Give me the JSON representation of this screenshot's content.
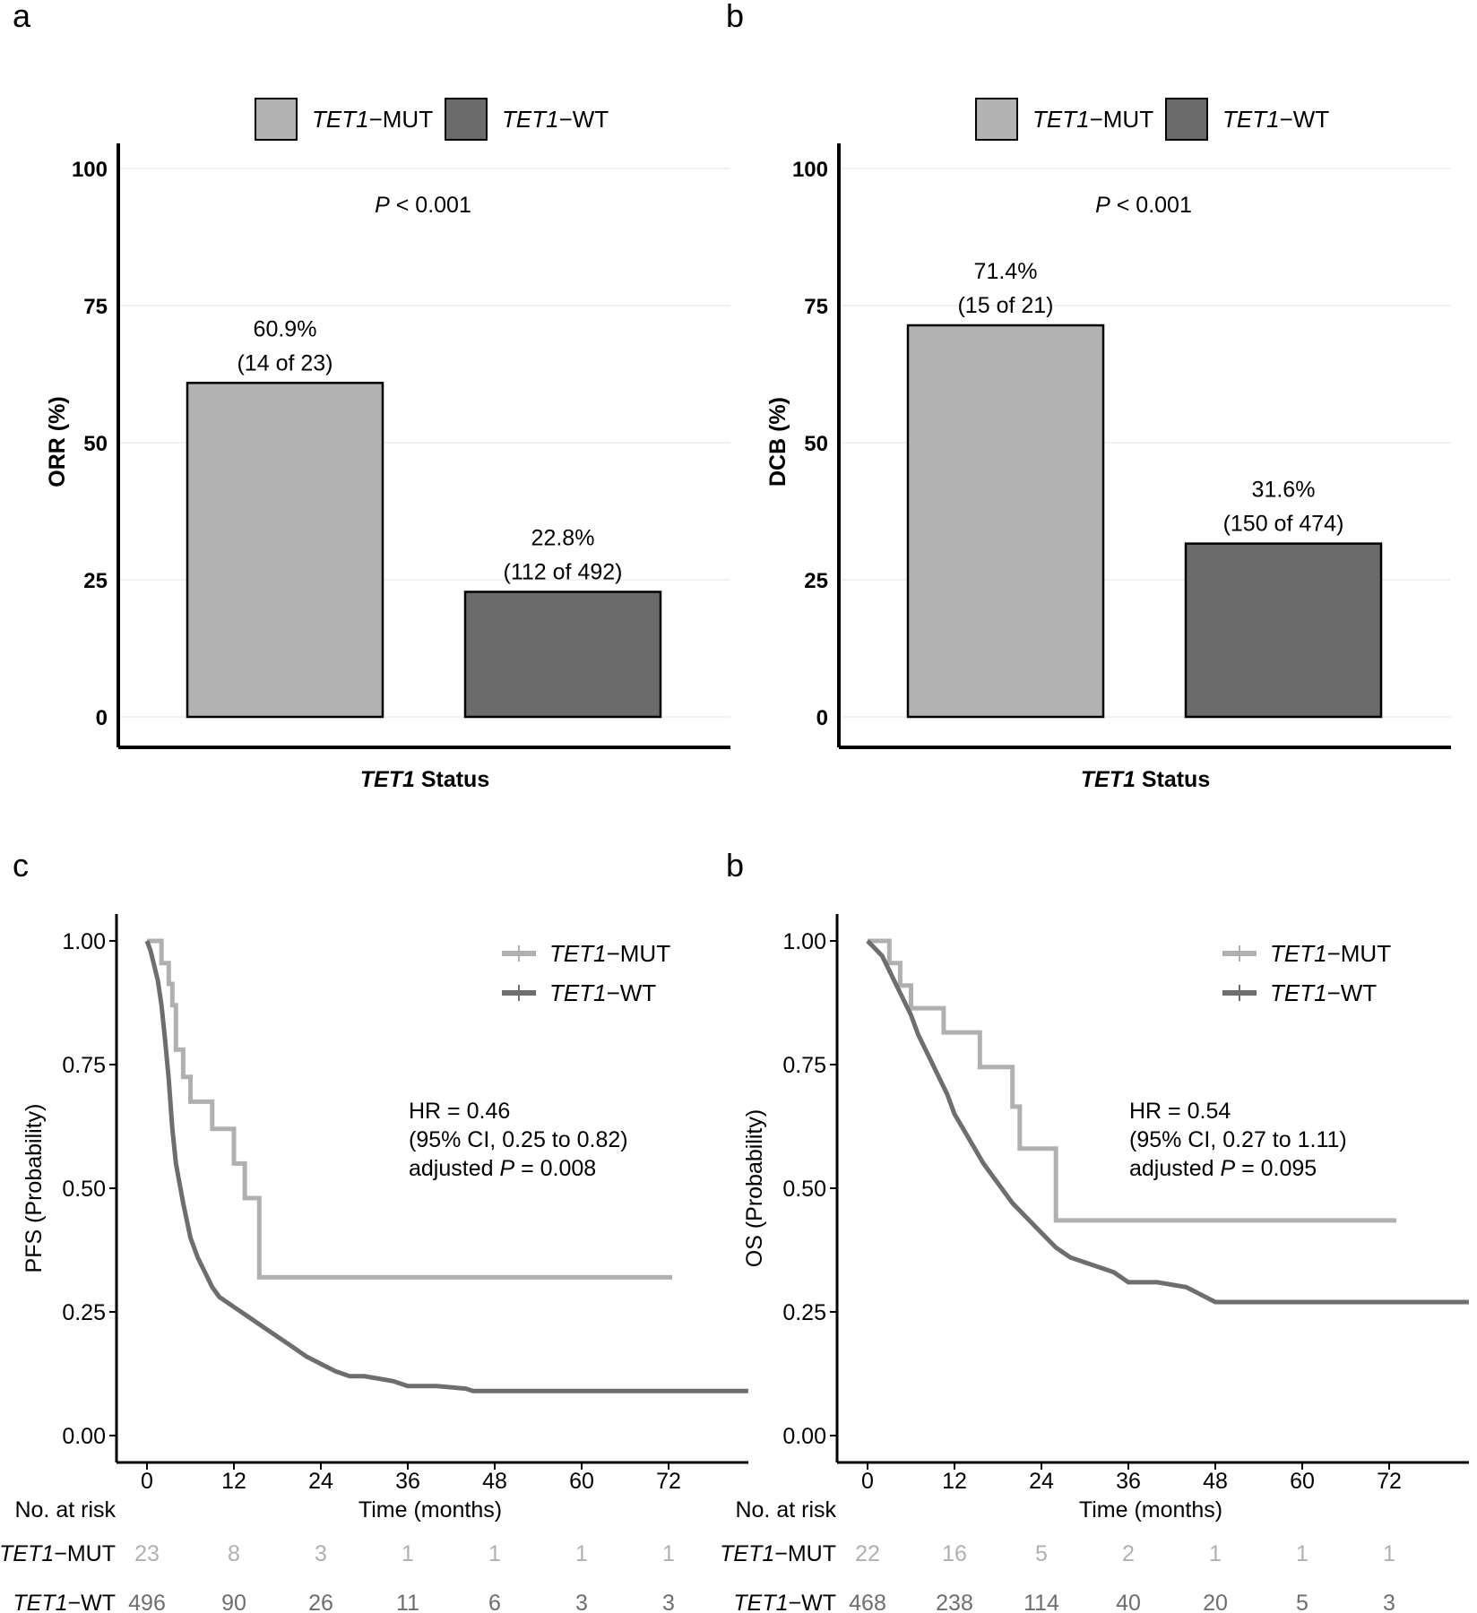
{
  "panels": {
    "a": "a",
    "b": "b",
    "c": "c",
    "d": "b"
  },
  "colors": {
    "mut": "#b3b3b3",
    "wt": "#6b6b6b",
    "mut_line": "#b0b0b0",
    "wt_line": "#6e6e6e",
    "axis": "#000000",
    "grid": "#eeeeee"
  },
  "legend": {
    "mut_italic": "TET1",
    "mut_suffix": "−MUT",
    "wt_italic": "TET1",
    "wt_suffix": "−WT"
  },
  "chart_data": [
    {
      "id": "a",
      "type": "bar",
      "title": "",
      "categories": [
        "TET1-MUT",
        "TET1-WT"
      ],
      "values": [
        60.9,
        22.8
      ],
      "bar_labels": [
        [
          "60.9%",
          "(14 of 23)"
        ],
        [
          "22.8%",
          "(112 of 492)"
        ]
      ],
      "xlabel_italic": "TET1",
      "xlabel_rest": " Status",
      "ylabel": "ORR (%)",
      "ylim": [
        0,
        100
      ],
      "yticks": [
        0,
        25,
        50,
        75,
        100
      ],
      "annotation_italic": "P",
      "annotation_rest": " < 0.001",
      "legend_position": "top",
      "grid": true
    },
    {
      "id": "b",
      "type": "bar",
      "title": "",
      "categories": [
        "TET1-MUT",
        "TET1-WT"
      ],
      "values": [
        71.4,
        31.6
      ],
      "bar_labels": [
        [
          "71.4%",
          "(15 of 21)"
        ],
        [
          "31.6%",
          "(150 of 474)"
        ]
      ],
      "xlabel_italic": "TET1",
      "xlabel_rest": " Status",
      "ylabel": "DCB (%)",
      "ylim": [
        0,
        100
      ],
      "yticks": [
        0,
        25,
        50,
        75,
        100
      ],
      "annotation_italic": "P",
      "annotation_rest": " < 0.001",
      "legend_position": "top",
      "grid": true
    },
    {
      "id": "c",
      "type": "line",
      "title": "",
      "xlabel": "Time (months)",
      "ylabel": "PFS (Probability)",
      "xlim": [
        0,
        83
      ],
      "ylim": [
        0,
        1
      ],
      "xticks": [
        0,
        12,
        24,
        36,
        48,
        60,
        72
      ],
      "yticks": [
        "0.00",
        "0.25",
        "0.50",
        "0.75",
        "1.00"
      ],
      "stat_lines": [
        {
          "text": "HR = 0.46"
        },
        {
          "text": "(95% CI, 0.25 to 0.82)"
        },
        {
          "pre": "adjusted ",
          "italic": "P",
          "post": " = 0.008"
        }
      ],
      "legend_position": "top-right",
      "risk_table_label": "No. at risk",
      "series": [
        {
          "name": "TET1-MUT",
          "x": [
            0,
            2,
            2,
            3,
            3,
            3.5,
            3.5,
            4,
            4,
            5,
            5,
            6,
            6,
            9,
            9,
            12,
            12,
            13.5,
            13.5,
            15.5,
            15.5,
            72.5
          ],
          "y": [
            1.0,
            1.0,
            0.955,
            0.955,
            0.913,
            0.913,
            0.87,
            0.87,
            0.78,
            0.78,
            0.725,
            0.725,
            0.675,
            0.675,
            0.62,
            0.62,
            0.55,
            0.55,
            0.48,
            0.48,
            0.32,
            0.32
          ],
          "risk": [
            23,
            8,
            3,
            1,
            1,
            1,
            1
          ]
        },
        {
          "name": "TET1-WT",
          "x": [
            0,
            0.5,
            1,
            1.5,
            2,
            2.5,
            3,
            3.5,
            4,
            5,
            6,
            7,
            8,
            9,
            10,
            12,
            14,
            16,
            18,
            20,
            22,
            24,
            26,
            28,
            30,
            32,
            34,
            36,
            40,
            44,
            45,
            48,
            60,
            72,
            83
          ],
          "y": [
            1.0,
            0.98,
            0.95,
            0.92,
            0.87,
            0.8,
            0.72,
            0.62,
            0.55,
            0.47,
            0.4,
            0.36,
            0.33,
            0.3,
            0.28,
            0.26,
            0.24,
            0.22,
            0.2,
            0.18,
            0.16,
            0.145,
            0.13,
            0.12,
            0.12,
            0.115,
            0.11,
            0.1,
            0.1,
            0.095,
            0.09,
            0.09,
            0.09,
            0.09,
            0.09
          ],
          "risk": [
            496,
            90,
            26,
            11,
            6,
            3,
            3
          ]
        }
      ]
    },
    {
      "id": "d",
      "type": "line",
      "title": "",
      "xlabel": "Time (months)",
      "ylabel": "OS (Probability)",
      "xlim": [
        0,
        83
      ],
      "ylim": [
        0,
        1
      ],
      "xticks": [
        0,
        12,
        24,
        36,
        48,
        60,
        72
      ],
      "yticks": [
        "0.00",
        "0.25",
        "0.50",
        "0.75",
        "1.00"
      ],
      "stat_lines": [
        {
          "text": "HR = 0.54"
        },
        {
          "text": "(95% CI, 0.27 to 1.11)"
        },
        {
          "pre": "adjusted ",
          "italic": "P",
          "post": " = 0.095"
        }
      ],
      "legend_position": "top-right",
      "risk_table_label": "No. at risk",
      "series": [
        {
          "name": "TET1-MUT",
          "x": [
            0,
            3,
            3,
            4.5,
            4.5,
            6,
            6,
            10.5,
            10.5,
            15.5,
            15.5,
            20,
            20,
            21,
            21,
            26,
            26,
            73
          ],
          "y": [
            1.0,
            1.0,
            0.955,
            0.955,
            0.91,
            0.91,
            0.864,
            0.864,
            0.815,
            0.815,
            0.745,
            0.745,
            0.665,
            0.665,
            0.58,
            0.58,
            0.435,
            0.435
          ],
          "risk": [
            22,
            16,
            5,
            2,
            1,
            1,
            1
          ]
        },
        {
          "name": "TET1-WT",
          "x": [
            0,
            1,
            2,
            3,
            4,
            5,
            6,
            7,
            8,
            9,
            10,
            11,
            12,
            14,
            16,
            18,
            20,
            22,
            24,
            26,
            28,
            30,
            32,
            34,
            36,
            38,
            40,
            44,
            48,
            60,
            72,
            83
          ],
          "y": [
            1.0,
            0.985,
            0.97,
            0.94,
            0.91,
            0.88,
            0.85,
            0.81,
            0.78,
            0.75,
            0.72,
            0.69,
            0.65,
            0.6,
            0.55,
            0.51,
            0.47,
            0.44,
            0.41,
            0.38,
            0.36,
            0.35,
            0.34,
            0.33,
            0.31,
            0.31,
            0.31,
            0.3,
            0.27,
            0.27,
            0.27,
            0.27
          ],
          "risk": [
            468,
            238,
            114,
            40,
            20,
            5,
            3
          ]
        }
      ]
    }
  ]
}
